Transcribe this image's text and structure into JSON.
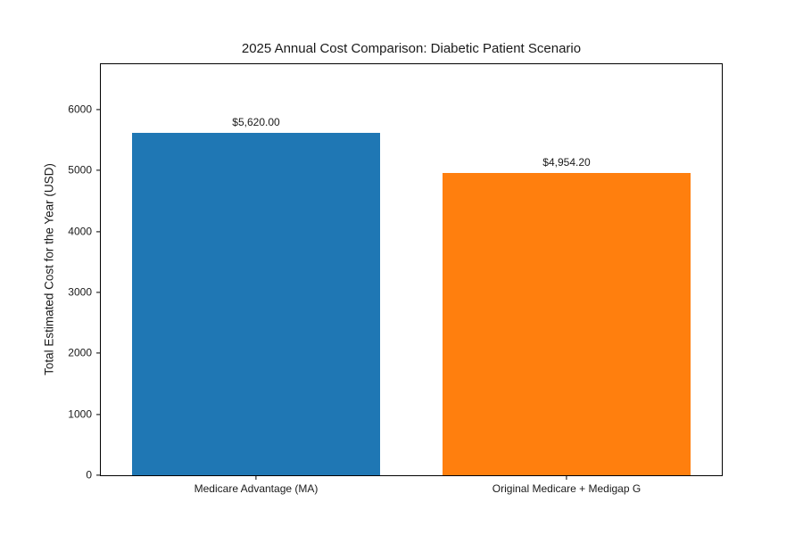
{
  "chart_data": {
    "type": "bar",
    "title": "2025 Annual Cost Comparison: Diabetic Patient Scenario",
    "xlabel": "",
    "ylabel": "Total Estimated Cost for the Year (USD)",
    "categories": [
      "Medicare Advantage (MA)",
      "Original Medicare + Medigap G"
    ],
    "values": [
      5620.0,
      4954.2
    ],
    "bar_labels": [
      "$5,620.00",
      "$4,954.20"
    ],
    "bar_colors": [
      "#1f77b4",
      "#ff7f0e"
    ],
    "ylim": [
      0,
      6744
    ],
    "yticks": [
      0,
      1000,
      2000,
      3000,
      4000,
      5000,
      6000
    ],
    "bar_width_fraction": 0.8,
    "grid": false,
    "legend": null,
    "background_color": "#ffffff",
    "spine_color": "#000000",
    "text_color": "#1a1a1a"
  }
}
